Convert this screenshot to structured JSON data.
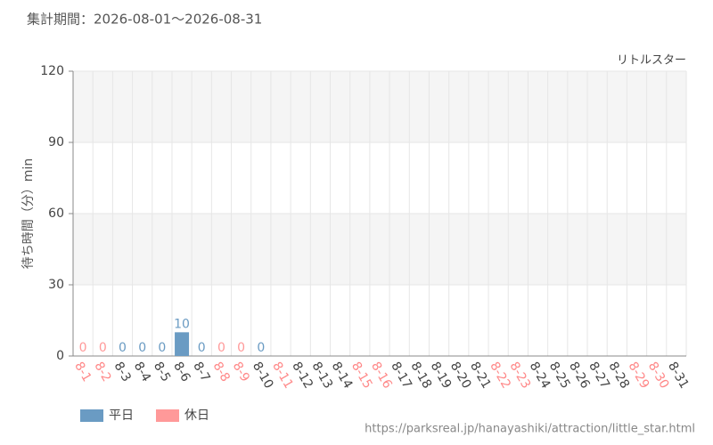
{
  "chart_data": {
    "type": "bar",
    "title": "集計期間：2026-08-01～2026-08-31",
    "subtitle": "リトルスター",
    "y_label": "待ち時間（分）min",
    "source": "https://parksreal.jp/hanayashiki/attraction/little_star.html",
    "categories": [
      "8-1",
      "8-2",
      "8-3",
      "8-4",
      "8-5",
      "8-6",
      "8-7",
      "8-8",
      "8-9",
      "8-10",
      "8-11",
      "8-12",
      "8-13",
      "8-14",
      "8-15",
      "8-16",
      "8-17",
      "8-18",
      "8-19",
      "8-20",
      "8-21",
      "8-22",
      "8-23",
      "8-24",
      "8-25",
      "8-26",
      "8-27",
      "8-28",
      "8-29",
      "8-30",
      "8-31"
    ],
    "category_label_colors": [
      "#f88",
      "#f88",
      "#444",
      "#444",
      "#444",
      "#444",
      "#444",
      "#f88",
      "#f88",
      "#444",
      "#f88",
      "#444",
      "#444",
      "#444",
      "#f88",
      "#f88",
      "#444",
      "#444",
      "#444",
      "#444",
      "#444",
      "#f88",
      "#f88",
      "#444",
      "#444",
      "#444",
      "#444",
      "#444",
      "#f88",
      "#f88",
      "#444"
    ],
    "series": [
      {
        "name": "平日",
        "color": "#6a9bc3",
        "values": [
          null,
          null,
          0,
          0,
          0,
          10,
          0,
          null,
          null,
          0,
          null,
          null,
          null,
          null,
          null,
          null,
          null,
          null,
          null,
          null,
          null,
          null,
          null,
          null,
          null,
          null,
          null,
          null,
          null,
          null,
          null
        ]
      },
      {
        "name": "休日",
        "color": "#f99",
        "values": [
          0,
          0,
          null,
          null,
          null,
          null,
          null,
          0,
          0,
          null,
          null,
          null,
          null,
          null,
          null,
          null,
          null,
          null,
          null,
          null,
          null,
          null,
          null,
          null,
          null,
          null,
          null,
          null,
          null,
          null,
          null
        ]
      }
    ],
    "ylim": [
      0,
      120
    ],
    "yticks": [
      0,
      30,
      60,
      90,
      120
    ],
    "grid": true
  }
}
